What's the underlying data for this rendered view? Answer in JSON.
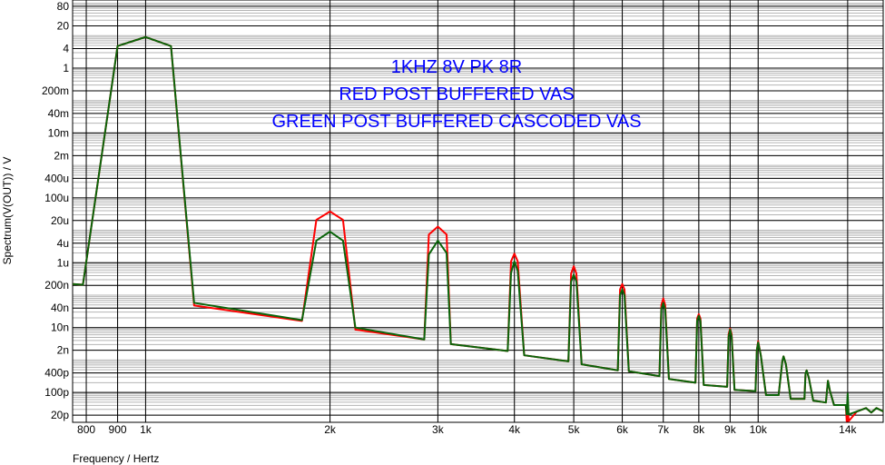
{
  "chart_data": {
    "type": "line",
    "title_lines": [
      "1KHZ 8V PK 8R",
      "RED POST BUFFERED VAS",
      "GREEN POST BUFFERED CASCODED VAS"
    ],
    "title_color": "#0000ff",
    "xlabel": "Frequency / Hertz",
    "ylabel": "Spectrum(V(OUT)) / V",
    "xscale": "log",
    "yscale": "log",
    "grid": true,
    "xlim": [
      760,
      16000
    ],
    "ylim": [
      1.2e-11,
      126
    ],
    "xticks": [
      800,
      900,
      {
        "value": 1000,
        "label": "1k"
      },
      {
        "value": 2000,
        "label": "2k"
      },
      {
        "value": 3000,
        "label": "3k"
      },
      {
        "value": 4000,
        "label": "4k"
      },
      {
        "value": 5000,
        "label": "5k"
      },
      {
        "value": 6000,
        "label": "6k"
      },
      {
        "value": 7000,
        "label": "7k"
      },
      {
        "value": 8000,
        "label": "8k"
      },
      {
        "value": 9000,
        "label": "9k"
      },
      {
        "value": 10000,
        "label": "10k"
      },
      {
        "value": 14000,
        "label": "14k"
      }
    ],
    "yticks": [
      80,
      20,
      4,
      1,
      {
        "value": 0.2,
        "label": "200m"
      },
      {
        "value": 0.04,
        "label": "40m"
      },
      {
        "value": 0.01,
        "label": "10m"
      },
      {
        "value": 0.002,
        "label": "2m"
      },
      {
        "value": 0.0004,
        "label": "400u"
      },
      {
        "value": 0.0001,
        "label": "100u"
      },
      {
        "value": 2e-05,
        "label": "20u"
      },
      {
        "value": 4e-06,
        "label": "4u"
      },
      {
        "value": 1e-06,
        "label": "1u"
      },
      {
        "value": 2e-07,
        "label": "200n"
      },
      {
        "value": 4e-08,
        "label": "40n"
      },
      {
        "value": 1e-08,
        "label": "10n"
      },
      {
        "value": 2e-09,
        "label": "2n"
      },
      {
        "value": 4e-10,
        "label": "400p"
      },
      {
        "value": 1e-10,
        "label": "100p"
      },
      {
        "value": 2e-11,
        "label": "20p"
      }
    ],
    "x": [
      760,
      790,
      900,
      1000,
      1100,
      1200,
      1800,
      1900,
      2000,
      2100,
      2200,
      2850,
      2900,
      3000,
      3100,
      3150,
      3900,
      3950,
      4000,
      4050,
      4150,
      4900,
      4950,
      5000,
      5050,
      5150,
      5900,
      5950,
      6000,
      6050,
      6150,
      6900,
      6950,
      7000,
      7050,
      7150,
      7900,
      7950,
      8000,
      8050,
      8150,
      8900,
      8950,
      9000,
      9050,
      9150,
      9900,
      9950,
      10000,
      10100,
      10300,
      10800,
      10950,
      11000,
      11100,
      11300,
      11900,
      11950,
      12000,
      12100,
      12300,
      12900,
      13000,
      13100,
      13300,
      13900,
      13950,
      14000,
      14050,
      14500,
      15000,
      15300,
      15600,
      16000
    ],
    "series": [
      {
        "color": "#ff0000",
        "values": [
          2.2e-07,
          2.1e-07,
          4.8,
          9.1,
          4.8,
          4.8e-08,
          1.6e-08,
          2.1e-05,
          3.8e-05,
          2.1e-05,
          8.7e-09,
          4.3e-09,
          7.4e-06,
          1.3e-05,
          7.4e-06,
          3.1e-09,
          1.9e-09,
          1.1e-06,
          1.9e-06,
          1.1e-06,
          1.4e-09,
          9.1e-10,
          4.6e-07,
          7.8e-07,
          4.6e-07,
          7.4e-10,
          4.8e-10,
          1.5e-07,
          2.2e-07,
          1.5e-07,
          4.5e-10,
          3.2e-10,
          5e-08,
          7.9e-08,
          5e-08,
          2.6e-10,
          2e-10,
          1.9e-08,
          2.6e-08,
          1.9e-08,
          1.7e-10,
          1.5e-10,
          6.3e-09,
          9.3e-09,
          6.3e-09,
          1.2e-10,
          1.1e-10,
          2e-09,
          3.8e-09,
          1.4e-09,
          8.3e-11,
          8.3e-11,
          9.1e-10,
          1.3e-09,
          7.4e-10,
          6.3e-11,
          6.3e-11,
          3.9e-10,
          4.8e-10,
          2.8e-10,
          5.6e-11,
          4.9e-11,
          2.3e-10,
          1.1e-10,
          4.1e-11,
          4.1e-11,
          1.3e-11,
          5.6e-11,
          1.3e-11,
          2.6e-11,
          3.3e-11,
          2.4e-11,
          3.3e-11,
          2.6e-11
        ]
      },
      {
        "color": "#0a640a",
        "values": [
          2.2e-07,
          2.1e-07,
          4.8,
          9.1,
          4.8,
          5.8e-08,
          1.7e-08,
          4.8e-06,
          9.1e-06,
          4.8e-06,
          1e-08,
          4.3e-09,
          1.8e-06,
          4.8e-06,
          2e-06,
          3.1e-09,
          1.9e-09,
          4.9e-07,
          1.1e-06,
          5.6e-07,
          1.4e-09,
          9.1e-10,
          2.6e-07,
          4.3e-07,
          2.6e-07,
          7.4e-10,
          4.8e-10,
          9.8e-08,
          1.5e-07,
          9.8e-08,
          4.5e-10,
          3.2e-10,
          3.6e-08,
          5.8e-08,
          3.6e-08,
          2.6e-10,
          2e-10,
          1.6e-08,
          2.3e-08,
          1.6e-08,
          1.7e-10,
          1.5e-10,
          5.2e-09,
          8.7e-09,
          5.2e-09,
          1.2e-10,
          1.1e-10,
          2e-09,
          3.5e-09,
          1.4e-09,
          8.3e-11,
          8.3e-11,
          9.1e-10,
          1.3e-09,
          7.4e-10,
          6.3e-11,
          6.3e-11,
          3.9e-10,
          4.8e-10,
          2.8e-10,
          5.6e-11,
          4.9e-11,
          2.3e-10,
          1.1e-10,
          4.1e-11,
          4.1e-11,
          2.1e-11,
          9.3e-11,
          2.1e-11,
          2.6e-11,
          3.3e-11,
          2.4e-11,
          3.3e-11,
          2.6e-11
        ]
      }
    ]
  }
}
